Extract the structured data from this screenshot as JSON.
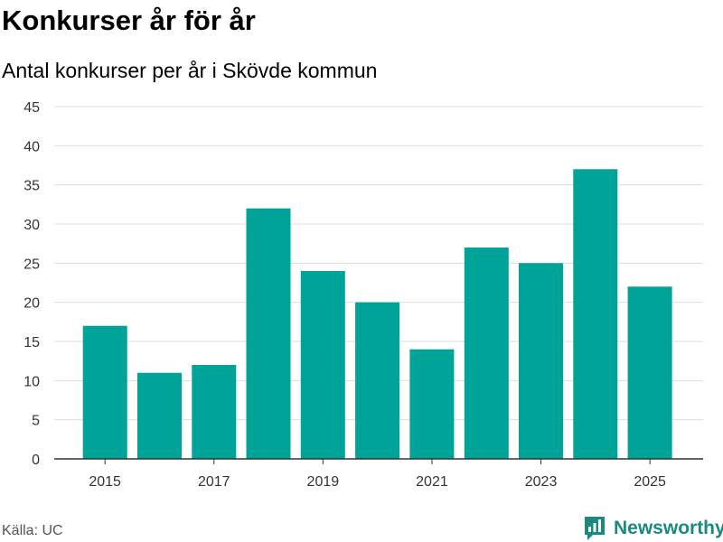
{
  "header": {
    "title": "Konkurser år för år",
    "subtitle": "Antal konkurser per år i Skövde kommun"
  },
  "footer": {
    "source": "Källa: UC",
    "logo_text": "Newsworthy",
    "logo_icon": "newsworthy-logo-icon"
  },
  "colors": {
    "bar": "#00a398",
    "grid": "#dddddd",
    "axis": "#333333",
    "logo": "#1a8a7f"
  },
  "chart_data": {
    "type": "bar",
    "categories": [
      2015,
      2016,
      2017,
      2018,
      2019,
      2020,
      2021,
      2022,
      2023,
      2024,
      2025
    ],
    "values": [
      17,
      11,
      12,
      32,
      24,
      20,
      14,
      27,
      25,
      37,
      22
    ],
    "x_tick_labels": [
      "2015",
      "2017",
      "2019",
      "2021",
      "2023",
      "2025"
    ],
    "y_ticks": [
      0,
      5,
      10,
      15,
      20,
      25,
      30,
      35,
      40,
      45
    ],
    "ylim": [
      0,
      45
    ],
    "grid": true,
    "legend": "none",
    "title": "Konkurser år för år",
    "subtitle": "Antal konkurser per år i Skövde kommun",
    "xlabel": "",
    "ylabel": ""
  }
}
